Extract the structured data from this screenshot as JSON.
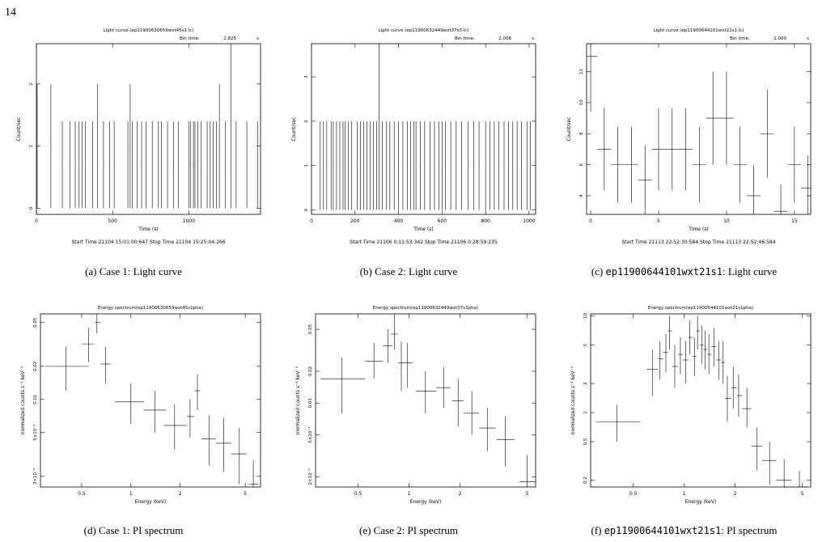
{
  "page_number": "14",
  "captions": {
    "a": {
      "tag": "(a)",
      "text": "Case 1:  Light curve"
    },
    "b": {
      "tag": "(b)",
      "text": "Case 2:  Light curve"
    },
    "c": {
      "tag": "(c)",
      "code": "ep11900644101wxt21s1",
      "text": ":  Light curve"
    },
    "d": {
      "tag": "(d)",
      "text": "Case 1:  PI spectrum"
    },
    "e": {
      "tag": "(e)",
      "text": "Case 2:  PI spectrum"
    },
    "f": {
      "tag": "(f)",
      "code": "ep11900644101wxt21s1",
      "text": ":  PI spectrum"
    }
  },
  "chart_data": [
    {
      "id": "a",
      "type": "scatter",
      "title": "Light curve (ep11900630659wxt45s1.lc)",
      "bin_label": "Bin time:",
      "bin_value": "2.825",
      "bin_unit": "s",
      "xlabel": "Time (s)",
      "ylabel": "Count/sec",
      "footer": "Start Time 21104 15:01:00:647     Stop Time 21104 15:25:04:266",
      "xlim": [
        0,
        1470
      ],
      "ylim": [
        -0.1,
        2.65
      ],
      "x_ticks": [
        0,
        500,
        1000
      ],
      "y_ticks": [
        0,
        1,
        2
      ],
      "xerr": 1.41,
      "points": [
        [
          5,
          1
        ],
        [
          95,
          1
        ],
        [
          170,
          0.7
        ],
        [
          220,
          0.7
        ],
        [
          255,
          0.7
        ],
        [
          280,
          0.7
        ],
        [
          300,
          0.7
        ],
        [
          320,
          0.7
        ],
        [
          370,
          0.7
        ],
        [
          400,
          1
        ],
        [
          440,
          0.7
        ],
        [
          480,
          0.7
        ],
        [
          510,
          0.7
        ],
        [
          600,
          0.7
        ],
        [
          615,
          1
        ],
        [
          630,
          0.7
        ],
        [
          660,
          0.7
        ],
        [
          690,
          0.7
        ],
        [
          720,
          0.7
        ],
        [
          760,
          0.7
        ],
        [
          800,
          0.7
        ],
        [
          820,
          0.7
        ],
        [
          860,
          0.7
        ],
        [
          900,
          0.7
        ],
        [
          930,
          0.7
        ],
        [
          1000,
          0.7
        ],
        [
          1010,
          0.7
        ],
        [
          1030,
          0.7
        ],
        [
          1040,
          0.7
        ],
        [
          1060,
          0.7
        ],
        [
          1080,
          0.7
        ],
        [
          1120,
          0.7
        ],
        [
          1140,
          0.7
        ],
        [
          1160,
          0.7
        ],
        [
          1180,
          0.7
        ],
        [
          1200,
          1
        ],
        [
          1240,
          0.7
        ],
        [
          1275,
          2.7
        ],
        [
          1310,
          0.7
        ],
        [
          1380,
          0.7
        ],
        [
          1450,
          0.7
        ]
      ]
    },
    {
      "id": "b",
      "type": "scatter",
      "title": "Light curve (ep11900632449wxt37s3.lc)",
      "bin_label": "Bin time:",
      "bin_value": "2.008",
      "bin_unit": "s",
      "xlabel": "Time (s)",
      "ylabel": "Count/sec",
      "footer": "Start Time 21106  0:11:53:342     Stop Time 21106  0:28:59:235",
      "xlim": [
        0,
        1030
      ],
      "ylim": [
        -0.1,
        3.75
      ],
      "x_ticks": [
        0,
        200,
        400,
        600,
        800,
        1000
      ],
      "y_ticks": [
        0,
        1,
        2,
        3
      ],
      "xerr": 1.0,
      "points": [
        [
          40,
          1
        ],
        [
          55,
          1
        ],
        [
          70,
          1
        ],
        [
          90,
          1
        ],
        [
          100,
          1
        ],
        [
          115,
          1
        ],
        [
          130,
          1
        ],
        [
          145,
          1
        ],
        [
          155,
          1
        ],
        [
          170,
          1
        ],
        [
          185,
          1
        ],
        [
          210,
          1
        ],
        [
          225,
          1
        ],
        [
          240,
          1
        ],
        [
          255,
          1
        ],
        [
          270,
          1
        ],
        [
          285,
          1
        ],
        [
          300,
          1
        ],
        [
          310,
          3.7
        ],
        [
          325,
          1
        ],
        [
          345,
          1
        ],
        [
          360,
          1
        ],
        [
          380,
          1
        ],
        [
          400,
          1
        ],
        [
          420,
          1
        ],
        [
          440,
          1
        ],
        [
          455,
          1
        ],
        [
          470,
          1
        ],
        [
          480,
          1
        ],
        [
          500,
          1
        ],
        [
          520,
          1
        ],
        [
          545,
          1
        ],
        [
          565,
          1
        ],
        [
          585,
          1
        ],
        [
          600,
          1
        ],
        [
          615,
          1
        ],
        [
          640,
          1
        ],
        [
          665,
          1
        ],
        [
          690,
          1
        ],
        [
          720,
          1
        ],
        [
          745,
          1
        ],
        [
          770,
          1
        ],
        [
          800,
          1
        ],
        [
          820,
          1
        ],
        [
          840,
          1
        ],
        [
          860,
          1
        ],
        [
          885,
          1
        ],
        [
          905,
          1
        ],
        [
          925,
          1
        ],
        [
          945,
          1
        ],
        [
          965,
          1
        ],
        [
          990,
          1
        ],
        [
          1005,
          1
        ]
      ]
    },
    {
      "id": "c",
      "type": "scatter",
      "title": "Light curve (ep11900644101wxt21s1.lc)",
      "bin_label": "Bin time:",
      "bin_value": "1.000",
      "bin_unit": "s",
      "xlabel": "Time (s)",
      "ylabel": "Count/sec",
      "footer": "Start Time 21113 22:52:30:584     Stop Time 21113 22:52:46:584",
      "xlim": [
        -0.3,
        16.2
      ],
      "ylim": [
        2.8,
        13.8
      ],
      "x_ticks": [
        0,
        5,
        10,
        15
      ],
      "y_ticks": [
        4,
        6,
        8,
        10,
        12
      ],
      "xerr": 0.5,
      "points": [
        [
          0,
          13,
          3.6
        ],
        [
          1,
          7,
          2.65
        ],
        [
          2,
          6,
          2.45
        ],
        [
          3,
          6,
          2.45
        ],
        [
          4,
          5,
          2.24
        ],
        [
          5,
          7,
          2.65
        ],
        [
          6,
          7,
          2.65
        ],
        [
          7,
          7,
          2.65
        ],
        [
          8,
          6,
          2.45
        ],
        [
          9,
          9,
          3
        ],
        [
          10,
          9,
          3
        ],
        [
          11,
          6,
          2.45
        ],
        [
          12,
          4,
          2
        ],
        [
          13,
          8,
          2.83
        ],
        [
          14,
          3,
          1.73
        ],
        [
          15,
          6,
          2.45
        ],
        [
          16,
          4.5,
          2.1
        ]
      ]
    },
    {
      "id": "d",
      "type": "scatter",
      "title": "Energy spectrum(ep11900630659wxt45s1pha)",
      "xlabel": "Energy (keV)",
      "ylabel": "normalized counts s⁻¹ keV⁻¹",
      "xscale": "log",
      "yscale": "log",
      "xlim": [
        0.28,
        6.2
      ],
      "ylim": [
        0.0016,
        0.06
      ],
      "x_ticks": [
        [
          "0.5",
          0.5
        ],
        [
          "1",
          1
        ],
        [
          "2",
          2
        ],
        [
          "5",
          5
        ]
      ],
      "y_ticks": [
        [
          "2×10⁻³",
          0.002
        ],
        [
          "5×10⁻³",
          0.005
        ],
        [
          "0.01",
          0.01
        ],
        [
          "0.02",
          0.02
        ],
        [
          "0.05",
          0.05
        ]
      ],
      "points": [
        [
          0.4,
          0.02,
          0.3,
          0.55,
          0.012,
          0.03
        ],
        [
          0.55,
          0.032,
          0.5,
          0.6,
          0.022,
          0.045
        ],
        [
          0.62,
          0.05,
          0.6,
          0.65,
          0.04,
          0.06
        ],
        [
          0.7,
          0.021,
          0.65,
          0.75,
          0.014,
          0.03
        ],
        [
          1.0,
          0.0095,
          0.8,
          1.2,
          0.006,
          0.014
        ],
        [
          1.4,
          0.008,
          1.2,
          1.65,
          0.005,
          0.012
        ],
        [
          1.85,
          0.0058,
          1.6,
          2.2,
          0.0035,
          0.009
        ],
        [
          2.3,
          0.007,
          2.2,
          2.45,
          0.0045,
          0.01
        ],
        [
          2.55,
          0.012,
          2.45,
          2.65,
          0.008,
          0.017
        ],
        [
          3.0,
          0.0044,
          2.7,
          3.3,
          0.0025,
          0.0072
        ],
        [
          3.7,
          0.004,
          3.3,
          4.1,
          0.0022,
          0.0068
        ],
        [
          4.6,
          0.0032,
          4.1,
          5.1,
          0.0017,
          0.0055
        ],
        [
          5.6,
          0.0017,
          5.3,
          6.0,
          0.0011,
          0.0028
        ]
      ]
    },
    {
      "id": "e",
      "type": "scatter",
      "title": "Energy spectrum(ep11900632449wxt37s3pha)",
      "xlabel": "Energy (keV)",
      "ylabel": "normalized counts s⁻¹ keV⁻¹",
      "xscale": "log",
      "yscale": "log",
      "xlim": [
        0.28,
        5.6
      ],
      "ylim": [
        0.0016,
        0.07
      ],
      "x_ticks": [
        [
          "0.5",
          0.5
        ],
        [
          "1",
          1
        ],
        [
          "2",
          2
        ],
        [
          "5",
          5
        ]
      ],
      "y_ticks": [
        [
          "2×10⁻³",
          0.002
        ],
        [
          "5×10⁻³",
          0.005
        ],
        [
          "0.01",
          0.01
        ],
        [
          "0.02",
          0.02
        ],
        [
          "0.05",
          0.05
        ]
      ],
      "points": [
        [
          0.4,
          0.017,
          0.3,
          0.55,
          0.008,
          0.027
        ],
        [
          0.62,
          0.025,
          0.55,
          0.7,
          0.017,
          0.037
        ],
        [
          0.75,
          0.035,
          0.7,
          0.8,
          0.024,
          0.05
        ],
        [
          0.82,
          0.045,
          0.78,
          0.86,
          0.032,
          0.07
        ],
        [
          0.9,
          0.024,
          0.86,
          0.95,
          0.013,
          0.038
        ],
        [
          0.98,
          0.024,
          0.95,
          1.05,
          0.014,
          0.037
        ],
        [
          1.25,
          0.013,
          1.1,
          1.45,
          0.008,
          0.02
        ],
        [
          1.6,
          0.014,
          1.45,
          1.75,
          0.009,
          0.022
        ],
        [
          1.95,
          0.0105,
          1.8,
          2.1,
          0.006,
          0.017
        ],
        [
          2.35,
          0.008,
          2.1,
          2.6,
          0.005,
          0.013
        ],
        [
          2.9,
          0.0058,
          2.6,
          3.25,
          0.0035,
          0.009
        ],
        [
          3.7,
          0.0045,
          3.3,
          4.2,
          0.0025,
          0.0075
        ],
        [
          5.0,
          0.0018,
          4.5,
          5.6,
          0.0012,
          0.0032
        ]
      ]
    },
    {
      "id": "f",
      "type": "scatter",
      "title": "Energy spectrum(ep11900644101wxt21s1pha)",
      "xlabel": "Energy (keV)",
      "ylabel": "normalized counts s⁻¹ keV⁻¹",
      "xscale": "log",
      "yscale": "log",
      "xlim": [
        0.28,
        5.6
      ],
      "ylim": [
        0.17,
        10.5
      ],
      "x_ticks": [
        [
          "0.5",
          0.5
        ],
        [
          "1",
          1
        ],
        [
          "2",
          2
        ],
        [
          "5",
          5
        ]
      ],
      "y_ticks": [
        [
          "0.2",
          0.2
        ],
        [
          "0.5",
          0.5
        ],
        [
          "1",
          1
        ],
        [
          "2",
          2
        ],
        [
          "5",
          5
        ],
        [
          "10",
          10
        ]
      ],
      "points": [
        [
          0.4,
          0.8,
          0.3,
          0.55,
          0.5,
          1.2
        ],
        [
          0.65,
          2.8,
          0.6,
          0.7,
          1.5,
          4.5
        ],
        [
          0.72,
          3.6,
          0.7,
          0.75,
          2.2,
          5.5
        ],
        [
          0.78,
          4.2,
          0.75,
          0.8,
          2.6,
          6.5
        ],
        [
          0.82,
          7.0,
          0.8,
          0.85,
          4.5,
          10
        ],
        [
          0.88,
          3.0,
          0.85,
          0.92,
          1.8,
          5
        ],
        [
          0.95,
          4.0,
          0.92,
          0.98,
          2.5,
          6
        ],
        [
          1.02,
          3.5,
          0.98,
          1.06,
          2.0,
          5.5
        ],
        [
          1.08,
          6.0,
          1.06,
          1.12,
          4.0,
          9
        ],
        [
          1.15,
          3.8,
          1.12,
          1.18,
          2.4,
          6
        ],
        [
          1.2,
          7.0,
          1.18,
          1.24,
          4.5,
          10
        ],
        [
          1.27,
          5.0,
          1.24,
          1.3,
          3.2,
          8
        ],
        [
          1.33,
          4.5,
          1.3,
          1.37,
          2.8,
          7
        ],
        [
          1.4,
          4.0,
          1.37,
          1.45,
          2.5,
          6.5
        ],
        [
          1.5,
          4.8,
          1.45,
          1.55,
          3.0,
          7.5
        ],
        [
          1.6,
          3.5,
          1.55,
          1.65,
          2.2,
          5.5
        ],
        [
          1.7,
          3.3,
          1.65,
          1.75,
          2.0,
          5.5
        ],
        [
          1.8,
          1.4,
          1.75,
          1.9,
          0.8,
          2.4
        ],
        [
          1.95,
          1.8,
          1.9,
          2.05,
          1.1,
          3.0
        ],
        [
          2.1,
          1.5,
          2.05,
          2.2,
          0.9,
          2.5
        ],
        [
          2.35,
          1.1,
          2.2,
          2.5,
          0.7,
          1.8
        ],
        [
          2.7,
          0.45,
          2.5,
          2.9,
          0.25,
          0.7
        ],
        [
          3.2,
          0.32,
          2.9,
          3.5,
          0.18,
          0.5
        ],
        [
          3.9,
          0.2,
          3.5,
          4.3,
          0.12,
          0.33
        ],
        [
          4.8,
          0.17,
          4.3,
          5.3,
          0.12,
          0.25
        ]
      ]
    }
  ]
}
